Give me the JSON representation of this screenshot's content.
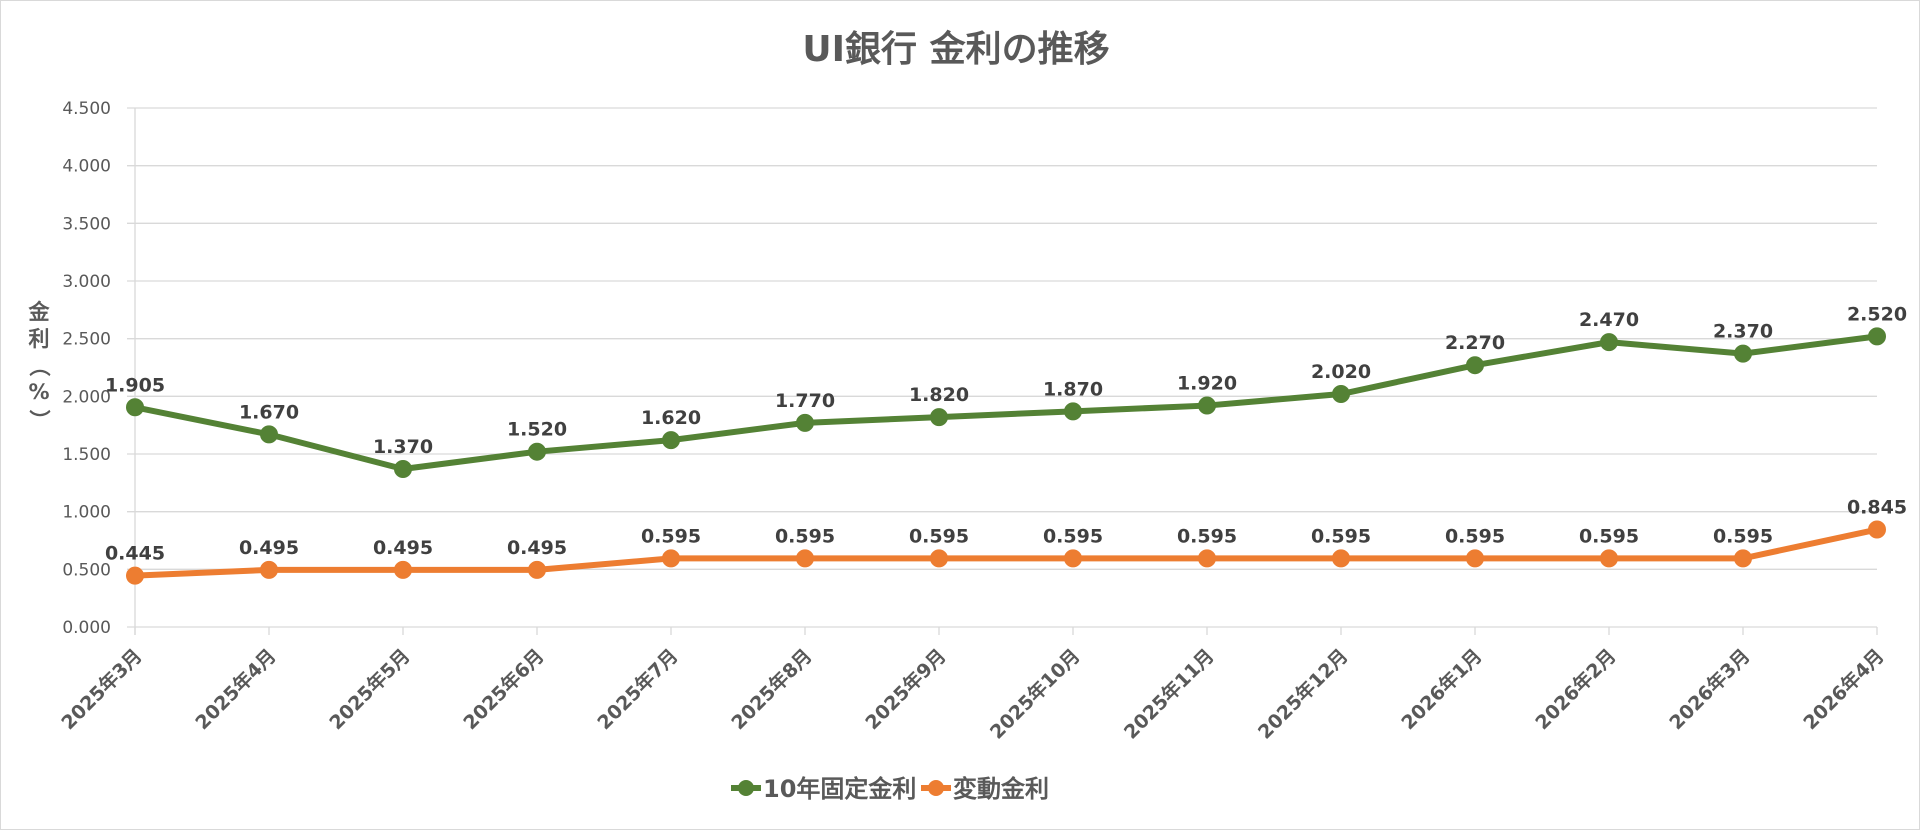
{
  "chart_data": {
    "type": "line",
    "title": "UI銀行 金利の推移",
    "xlabel": "",
    "ylabel": "金利（%）",
    "ylim": [
      0,
      4.5
    ],
    "y_ticks": [
      "0.000",
      "0.500",
      "1.000",
      "1.500",
      "2.000",
      "2.500",
      "3.000",
      "3.500",
      "4.000",
      "4.500"
    ],
    "grid": true,
    "legend_position": "bottom",
    "categories": [
      "2025年3月",
      "2025年4月",
      "2025年5月",
      "2025年6月",
      "2025年7月",
      "2025年8月",
      "2025年9月",
      "2025年10月",
      "2025年11月",
      "2025年12月",
      "2026年1月",
      "2026年2月",
      "2026年3月",
      "2026年4月"
    ],
    "series": [
      {
        "name": "10年固定金利",
        "color": "#548235",
        "values": [
          1.905,
          1.67,
          1.37,
          1.52,
          1.62,
          1.77,
          1.82,
          1.87,
          1.92,
          2.02,
          2.27,
          2.47,
          2.37,
          2.52
        ],
        "labels": [
          "1.905",
          "1.670",
          "1.370",
          "1.520",
          "1.620",
          "1.770",
          "1.820",
          "1.870",
          "1.920",
          "2.020",
          "2.270",
          "2.470",
          "2.370",
          "2.520"
        ]
      },
      {
        "name": "変動金利",
        "color": "#ED7D31",
        "values": [
          0.445,
          0.495,
          0.495,
          0.495,
          0.595,
          0.595,
          0.595,
          0.595,
          0.595,
          0.595,
          0.595,
          0.595,
          0.595,
          0.845
        ],
        "labels": [
          "0.445",
          "0.495",
          "0.495",
          "0.495",
          "0.595",
          "0.595",
          "0.595",
          "0.595",
          "0.595",
          "0.595",
          "0.595",
          "0.595",
          "0.595",
          "0.845"
        ]
      }
    ]
  },
  "ylabel_chars": [
    "金",
    "利",
    "（",
    "%",
    "）"
  ]
}
